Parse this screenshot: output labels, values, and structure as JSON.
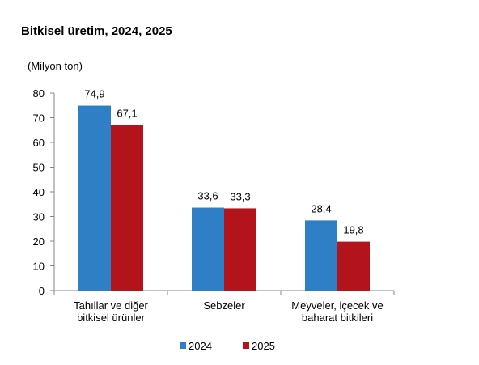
{
  "title": "Bitkisel üretim, 2024, 2025",
  "colors": {
    "axis": "#868686",
    "text": "#000000",
    "background": "#ffffff"
  },
  "chart_data": {
    "type": "bar",
    "title": "Bitkisel üretim, 2024, 2025",
    "ylabel": "(Milyon ton)",
    "xlabel": "",
    "ylim": [
      0,
      80
    ],
    "yticks": [
      0,
      10,
      20,
      30,
      40,
      50,
      60,
      70,
      80
    ],
    "grid": false,
    "legend_position": "bottom",
    "categories": [
      [
        "Tahıllar ve diğer",
        "bitkisel ürünler"
      ],
      [
        "Sebzeler"
      ],
      [
        "Meyveler, içecek ve",
        "baharat  bitkileri"
      ]
    ],
    "series": [
      {
        "name": "2024",
        "color": "#2e7fc6",
        "values": [
          74.9,
          33.6,
          28.4
        ],
        "labels": [
          "74,9",
          "33,6",
          "28,4"
        ]
      },
      {
        "name": "2025",
        "color": "#b3141c",
        "values": [
          67.1,
          33.3,
          19.8
        ],
        "labels": [
          "67,1",
          "33,3",
          "19,8"
        ]
      }
    ]
  }
}
